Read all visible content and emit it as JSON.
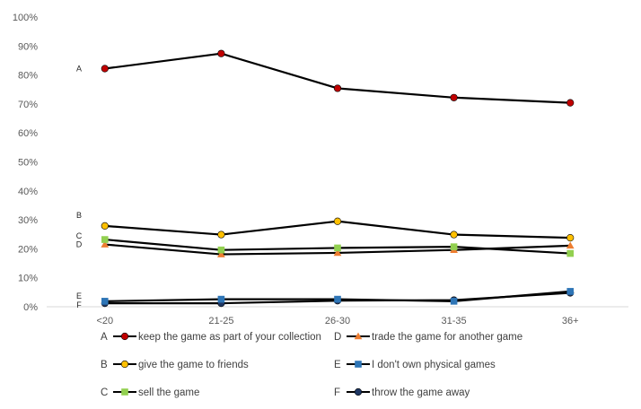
{
  "chart_data": {
    "type": "line",
    "categories": [
      "<20",
      "21-25",
      "26-30",
      "31-35",
      "36+"
    ],
    "ylim": [
      0,
      100
    ],
    "y_ticks": [
      "0%",
      "10%",
      "20%",
      "30%",
      "40%",
      "50%",
      "60%",
      "70%",
      "80%",
      "90%",
      "100%"
    ],
    "grid": false,
    "legend_position": "bottom",
    "series": [
      {
        "key": "A",
        "name": "keep the game as part of your collection",
        "marker": "circle",
        "color": "#c00000",
        "values": [
          82.2,
          87.4,
          75.4,
          72.2,
          70.4
        ]
      },
      {
        "key": "B",
        "name": "give the game to friends",
        "marker": "circle",
        "color": "#ffc000",
        "values": [
          27.9,
          24.9,
          29.5,
          24.9,
          23.8
        ]
      },
      {
        "key": "C",
        "name": "sell the game",
        "marker": "square",
        "color": "#92d050",
        "values": [
          23.2,
          19.6,
          20.3,
          20.7,
          18.4
        ]
      },
      {
        "key": "D",
        "name": "trade the game for another game",
        "marker": "triangle",
        "color": "#ed7d31",
        "values": [
          21.5,
          18.1,
          18.6,
          19.6,
          21.1
        ]
      },
      {
        "key": "E",
        "name": "I don't own physical games",
        "marker": "square",
        "color": "#2e75b6",
        "values": [
          1.9,
          2.6,
          2.6,
          1.9,
          5.3
        ]
      },
      {
        "key": "F",
        "name": "throw the game away",
        "marker": "circle",
        "color": "#1f3864",
        "values": [
          1.2,
          1.2,
          2.1,
          2.3,
          4.8
        ]
      }
    ]
  }
}
